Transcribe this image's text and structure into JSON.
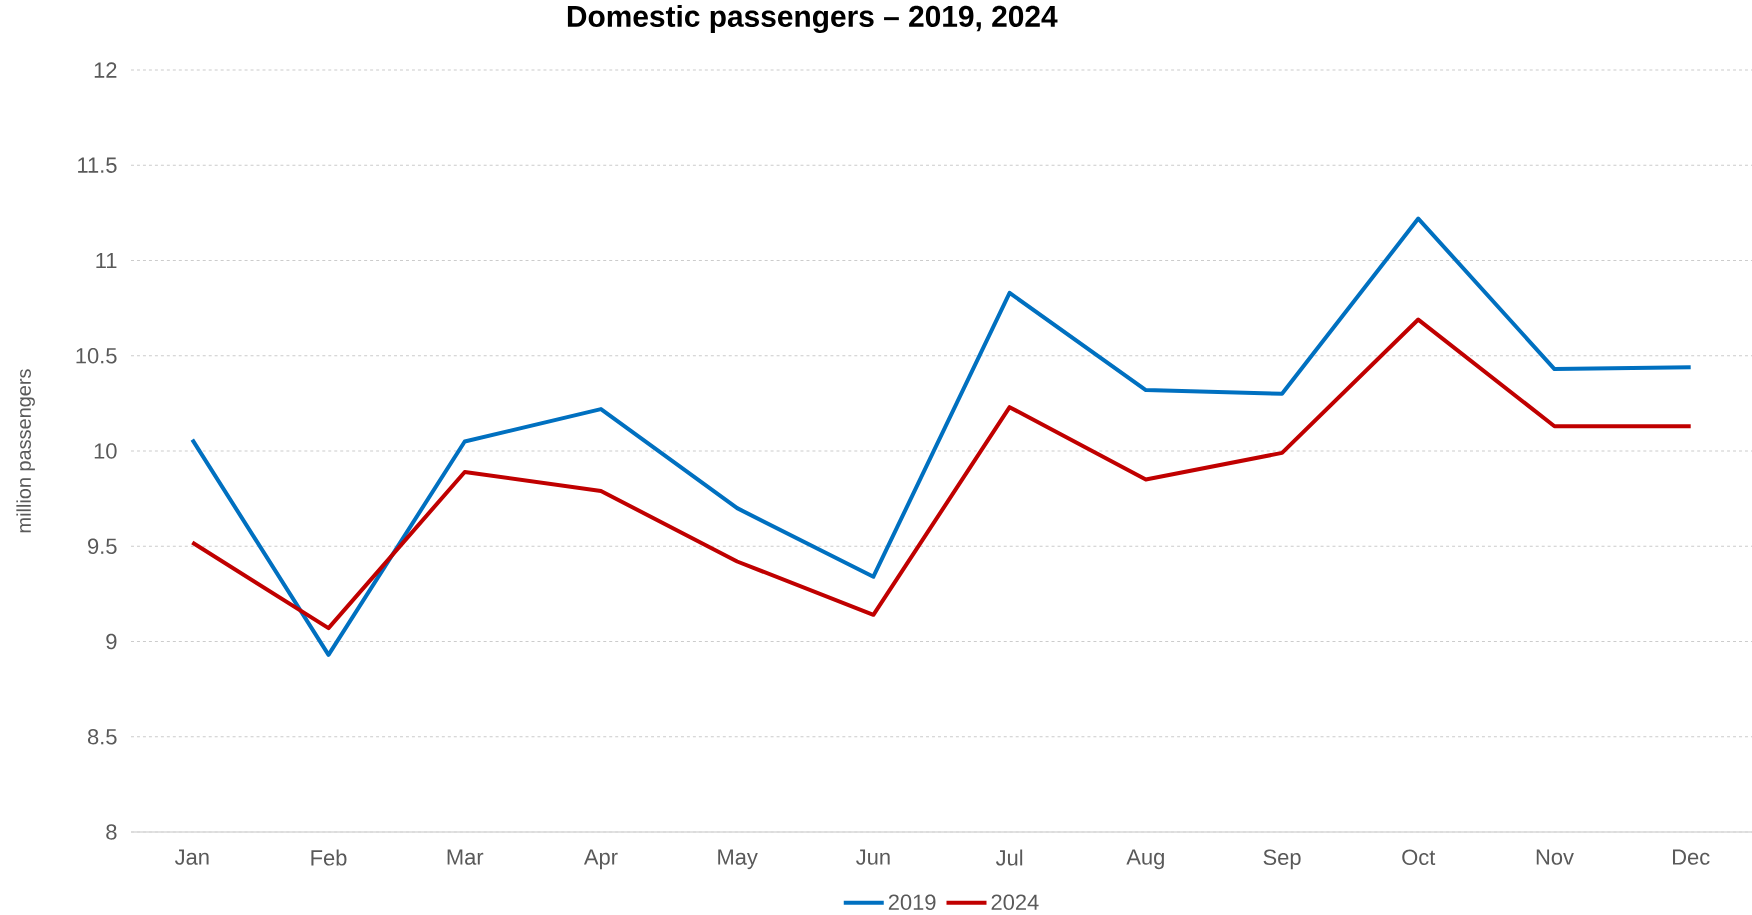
{
  "chart_data": {
    "type": "line",
    "title": "Domestic passengers – 2019, 2024",
    "ylabel": "million passengers",
    "categories": [
      "Jan",
      "Feb",
      "Mar",
      "Apr",
      "May",
      "Jun",
      "Jul",
      "Aug",
      "Sep",
      "Oct",
      "Nov",
      "Dec"
    ],
    "series": [
      {
        "name": "2019",
        "color": "#0070c0",
        "values": [
          10.06,
          8.93,
          10.05,
          10.22,
          9.7,
          9.34,
          10.83,
          10.32,
          10.3,
          11.22,
          10.43,
          10.44
        ]
      },
      {
        "name": "2024",
        "color": "#c00000",
        "values": [
          9.52,
          9.07,
          9.89,
          9.79,
          9.42,
          9.14,
          10.23,
          9.85,
          9.99,
          10.69,
          10.13,
          10.13
        ]
      }
    ],
    "ylim": [
      8,
      12
    ],
    "yticks": [
      8,
      8.5,
      9,
      9.5,
      10,
      10.5,
      11,
      11.5,
      12
    ],
    "grid": "y",
    "legend": "bottom",
    "marker": "none",
    "line_style": "solid"
  }
}
